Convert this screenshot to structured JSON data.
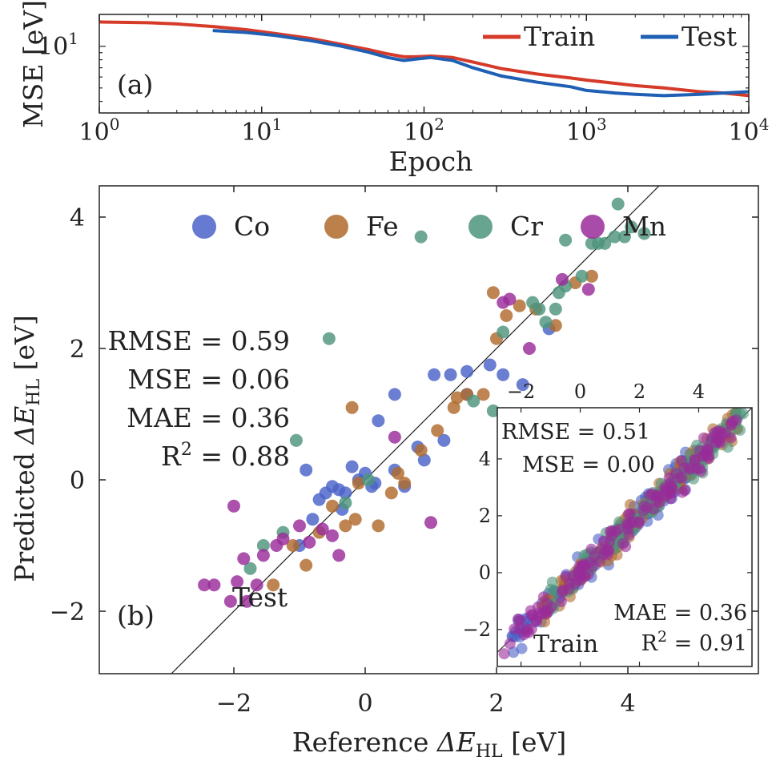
{
  "chart_data": [
    {
      "type": "line",
      "panel_label": "(a)",
      "xlabel": "Epoch",
      "ylabel": "MSE [eV]",
      "xscale": "log",
      "yscale": "log",
      "xlim": [
        1,
        10000
      ],
      "ylim": [
        3.3,
        17
      ],
      "x_ticks": [
        1,
        10,
        100,
        1000,
        10000
      ],
      "x_tick_labels": [
        {
          "base": "10",
          "exp": "0"
        },
        {
          "base": "10",
          "exp": "1"
        },
        {
          "base": "10",
          "exp": "2"
        },
        {
          "base": "10",
          "exp": "3"
        },
        {
          "base": "10",
          "exp": "4"
        }
      ],
      "y_ticks": [
        10
      ],
      "y_tick_labels": [
        {
          "base": "10",
          "exp": "1"
        }
      ],
      "legend_position": "top-right",
      "series": [
        {
          "name": "Train",
          "color": "#d63b2a",
          "x": [
            1,
            2,
            3,
            5,
            8,
            12,
            20,
            30,
            45,
            60,
            75,
            90,
            110,
            150,
            200,
            300,
            500,
            800,
            1000,
            1500,
            2000,
            3000,
            5000,
            7000,
            10000
          ],
          "y": [
            15.0,
            14.8,
            14.5,
            13.9,
            13.2,
            12.4,
            11.4,
            10.4,
            9.5,
            8.8,
            8.4,
            8.4,
            8.5,
            8.3,
            7.7,
            6.9,
            6.3,
            5.9,
            5.7,
            5.4,
            5.2,
            5.0,
            4.7,
            4.6,
            4.4
          ]
        },
        {
          "name": "Test",
          "color": "#1f5fb4",
          "x": [
            5,
            8,
            12,
            20,
            30,
            45,
            60,
            75,
            90,
            110,
            150,
            200,
            300,
            500,
            800,
            1000,
            1500,
            2000,
            3000,
            5000,
            7000,
            10000
          ],
          "y": [
            13.0,
            12.6,
            12.0,
            11.0,
            10.1,
            9.1,
            8.3,
            7.9,
            8.1,
            8.3,
            7.9,
            7.0,
            6.1,
            5.5,
            5.1,
            4.8,
            4.6,
            4.5,
            4.4,
            4.5,
            4.6,
            4.7
          ]
        }
      ]
    },
    {
      "type": "scatter",
      "panel_label": "(b)",
      "subset_label": "Test",
      "xlabel_text": "Reference ",
      "ylabel_text": "Predicted ",
      "quantity_symbol": "ΔE",
      "quantity_subscript": "HL",
      "unit": " [eV]",
      "xlim": [
        -4,
        6
      ],
      "ylim": [
        -4,
        6
      ],
      "x_ticks": [
        -2,
        0,
        2,
        4
      ],
      "y_ticks": [
        -2,
        0,
        2,
        4
      ],
      "x_tick_labels": [
        "−2",
        "0",
        "2",
        "4"
      ],
      "y_tick_labels": [
        "−2",
        "0",
        "2",
        "4"
      ],
      "diagonal": true,
      "legend_position": "top",
      "metrics": [
        {
          "label": "RMSE = 0.59"
        },
        {
          "label": "MSE = 0.06"
        },
        {
          "label": "MAE = 0.36"
        },
        {
          "label": "R",
          "sup": "2",
          "suffix": " = 0.88"
        }
      ],
      "series": [
        {
          "name": "Co",
          "color": "#4a63c8",
          "points": [
            [
              -1.0,
              -1.0
            ],
            [
              -0.9,
              0.15
            ],
            [
              -0.8,
              -0.6
            ],
            [
              -0.7,
              -0.3
            ],
            [
              -0.6,
              -0.2
            ],
            [
              -0.5,
              -0.1
            ],
            [
              -0.4,
              -0.15
            ],
            [
              -0.3,
              -0.2
            ],
            [
              -0.2,
              0.2
            ],
            [
              -0.1,
              0.0
            ],
            [
              0.0,
              0.1
            ],
            [
              0.1,
              -0.1
            ],
            [
              -0.35,
              -0.45
            ],
            [
              0.45,
              0.15
            ],
            [
              0.6,
              -0.1
            ],
            [
              0.8,
              0.5
            ],
            [
              0.9,
              0.3
            ],
            [
              1.05,
              1.6
            ],
            [
              1.2,
              0.6
            ],
            [
              1.3,
              1.6
            ],
            [
              1.55,
              1.3
            ],
            [
              1.55,
              1.65
            ],
            [
              1.9,
              1.75
            ],
            [
              2.1,
              1.6
            ],
            [
              2.4,
              1.45
            ],
            [
              2.8,
              2.3
            ],
            [
              0.2,
              0.9
            ],
            [
              0.45,
              1.3
            ],
            [
              0.15,
              -0.05
            ]
          ]
        },
        {
          "name": "Fe",
          "color": "#b06a2c",
          "points": [
            [
              -1.4,
              -1.6
            ],
            [
              -1.1,
              -1.0
            ],
            [
              -0.9,
              -1.3
            ],
            [
              -0.7,
              -0.8
            ],
            [
              -0.5,
              -0.4
            ],
            [
              -0.3,
              -0.7
            ],
            [
              -0.15,
              -0.6
            ],
            [
              -0.1,
              -0.05
            ],
            [
              -0.2,
              1.1
            ],
            [
              0.2,
              -0.7
            ],
            [
              0.4,
              -0.2
            ],
            [
              0.5,
              0.1
            ],
            [
              0.6,
              -0.05
            ],
            [
              0.85,
              0.45
            ],
            [
              1.1,
              0.75
            ],
            [
              1.35,
              1.1
            ],
            [
              1.4,
              1.25
            ],
            [
              1.55,
              1.3
            ],
            [
              1.8,
              1.3
            ],
            [
              1.95,
              2.85
            ],
            [
              2.0,
              2.15
            ],
            [
              2.15,
              2.5
            ],
            [
              2.35,
              2.65
            ],
            [
              2.6,
              2.6
            ],
            [
              2.9,
              2.35
            ],
            [
              3.2,
              3.0
            ],
            [
              3.45,
              3.1
            ]
          ]
        },
        {
          "name": "Cr",
          "color": "#4e957c",
          "points": [
            [
              -1.75,
              -1.35
            ],
            [
              -1.55,
              -1.0
            ],
            [
              -1.25,
              -0.8
            ],
            [
              -1.05,
              0.6
            ],
            [
              -0.55,
              2.15
            ],
            [
              -0.3,
              -0.35
            ],
            [
              0.05,
              0.0
            ],
            [
              0.85,
              3.7
            ],
            [
              1.65,
              1.2
            ],
            [
              1.95,
              1.05
            ],
            [
              2.1,
              2.25
            ],
            [
              2.55,
              2.7
            ],
            [
              2.65,
              2.6
            ],
            [
              2.75,
              2.4
            ],
            [
              2.9,
              2.6
            ],
            [
              2.95,
              2.85
            ],
            [
              3.05,
              2.95
            ],
            [
              3.3,
              3.1
            ],
            [
              3.45,
              3.6
            ],
            [
              3.55,
              3.6
            ],
            [
              3.65,
              3.6
            ],
            [
              3.8,
              3.7
            ],
            [
              3.85,
              4.2
            ],
            [
              3.95,
              3.7
            ],
            [
              4.05,
              3.85
            ],
            [
              4.25,
              3.75
            ],
            [
              3.05,
              3.65
            ]
          ]
        },
        {
          "name": "Mn",
          "color": "#9a2c9a",
          "points": [
            [
              -2.45,
              -1.6
            ],
            [
              -2.3,
              -1.6
            ],
            [
              -2.05,
              -1.85
            ],
            [
              -2.0,
              -0.4
            ],
            [
              -1.95,
              -1.55
            ],
            [
              -1.85,
              -1.2
            ],
            [
              -1.8,
              -1.85
            ],
            [
              -1.65,
              -1.6
            ],
            [
              -1.55,
              -1.15
            ],
            [
              -1.35,
              -1.0
            ],
            [
              -1.25,
              -0.9
            ],
            [
              -1.0,
              -0.7
            ],
            [
              -0.85,
              -0.95
            ],
            [
              -0.65,
              -0.75
            ],
            [
              -0.5,
              -0.85
            ],
            [
              -0.4,
              -1.15
            ],
            [
              0.45,
              0.65
            ],
            [
              1.0,
              -0.65
            ],
            [
              2.1,
              2.7
            ],
            [
              2.2,
              2.75
            ],
            [
              3.0,
              3.05
            ],
            [
              3.4,
              2.9
            ],
            [
              2.5,
              2.0
            ]
          ]
        }
      ],
      "inset": {
        "subset_label": "Train",
        "xlim": [
          -2.8,
          5.8
        ],
        "ylim": [
          -3.3,
          5.8
        ],
        "ticks": [
          -2,
          0,
          2,
          4
        ],
        "tick_labels": [
          "−2",
          "0",
          "2",
          "4"
        ],
        "metrics": [
          {
            "label": "RMSE = 0.51"
          },
          {
            "label": "MSE = 0.00"
          },
          {
            "label": "MAE = 0.36"
          },
          {
            "label": "R",
            "sup": "2",
            "suffix": " = 0.91"
          }
        ]
      }
    }
  ]
}
